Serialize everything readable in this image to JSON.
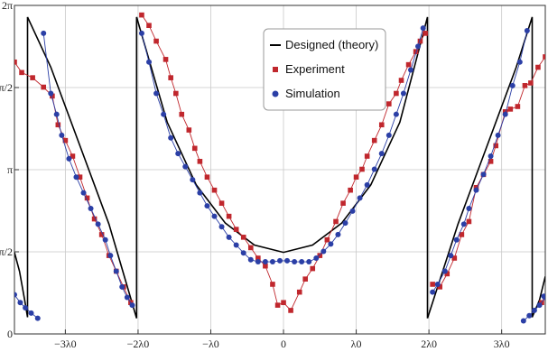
{
  "chart_data": {
    "type": "line",
    "title": "",
    "xlabel": "",
    "ylabel": "",
    "xlim": [
      -3.7,
      3.6
    ],
    "ylim": [
      0,
      6.2832
    ],
    "x_unit": "λ0",
    "y_unit": "rad",
    "grid": true,
    "legend_position": "top-center",
    "x_ticks": [
      {
        "value": -3,
        "label": "−3λ0"
      },
      {
        "value": -2,
        "label": "−2λ0"
      },
      {
        "value": -1,
        "label": "−λ0"
      },
      {
        "value": 0,
        "label": "0"
      },
      {
        "value": 1,
        "label": "λ0"
      },
      {
        "value": 2,
        "label": "2λ0"
      },
      {
        "value": 3,
        "label": "3λ0"
      }
    ],
    "y_ticks": [
      {
        "value": 0,
        "label": "0"
      },
      {
        "value": 1.5708,
        "label": "π/2"
      },
      {
        "value": 3.1416,
        "label": "π"
      },
      {
        "value": 4.7124,
        "label": "3π/2"
      },
      {
        "value": 6.2832,
        "label": "2π"
      }
    ],
    "series": [
      {
        "name": "Designed (theory)",
        "style": "line",
        "color": "#000000",
        "segments": [
          [
            [
              -3.7,
              1.56
            ],
            [
              -3.63,
              1.2
            ],
            [
              -3.56,
              0.65
            ],
            [
              -3.52,
              0.32
            ],
            [
              -3.52,
              6.06
            ]
          ],
          [
            [
              -3.52,
              6.06
            ],
            [
              -3.2,
              5.1
            ],
            [
              -2.8,
              3.6
            ],
            [
              -2.4,
              2.1
            ],
            [
              -2.02,
              0.3
            ],
            [
              -2.02,
              6.06
            ]
          ],
          [
            [
              -2.02,
              6.06
            ],
            [
              -1.6,
              4.05
            ],
            [
              -1.2,
              2.85
            ],
            [
              -0.8,
              2.12
            ],
            [
              -0.4,
              1.7
            ],
            [
              0,
              1.56
            ],
            [
              0.4,
              1.7
            ],
            [
              0.8,
              2.12
            ],
            [
              1.2,
              2.85
            ],
            [
              1.6,
              4.05
            ],
            [
              1.98,
              6.06
            ],
            [
              1.98,
              0.3
            ]
          ],
          [
            [
              1.98,
              0.3
            ],
            [
              2.4,
              2.1
            ],
            [
              2.8,
              3.6
            ],
            [
              3.2,
              5.1
            ],
            [
              3.42,
              6.06
            ],
            [
              3.42,
              0.32
            ],
            [
              3.52,
              0.65
            ],
            [
              3.6,
              1.1
            ]
          ]
        ]
      },
      {
        "name": "Experiment",
        "style": "line+square",
        "color": "#c0272d",
        "points": [
          [
            -3.7,
            5.2
          ],
          [
            -3.6,
            5.0
          ],
          [
            -3.45,
            4.9
          ],
          [
            -3.3,
            4.72
          ],
          [
            -3.18,
            4.55
          ],
          [
            -3.1,
            4.0
          ],
          [
            -3.0,
            3.7
          ],
          [
            -2.9,
            3.4
          ],
          [
            -2.8,
            3.0
          ],
          [
            -2.7,
            2.6
          ],
          [
            -2.6,
            2.2
          ],
          [
            -2.5,
            1.9
          ],
          [
            -2.4,
            1.5
          ],
          [
            -2.3,
            1.2
          ],
          [
            -2.2,
            0.9
          ],
          [
            -2.1,
            0.6
          ],
          [
            -1.95,
            6.1
          ],
          [
            -1.85,
            5.9
          ],
          [
            -1.75,
            5.6
          ],
          [
            -1.62,
            5.25
          ],
          [
            -1.55,
            4.9
          ],
          [
            -1.48,
            4.6
          ],
          [
            -1.4,
            4.2
          ],
          [
            -1.3,
            3.9
          ],
          [
            -1.22,
            3.55
          ],
          [
            -1.15,
            3.3
          ],
          [
            -1.05,
            3.0
          ],
          [
            -0.95,
            2.75
          ],
          [
            -0.85,
            2.5
          ],
          [
            -0.75,
            2.25
          ],
          [
            -0.65,
            2.0
          ],
          [
            -0.55,
            1.85
          ],
          [
            -0.45,
            1.65
          ],
          [
            -0.35,
            1.45
          ],
          [
            -0.25,
            1.3
          ],
          [
            -0.15,
            0.95
          ],
          [
            -0.08,
            0.55
          ],
          [
            0.0,
            0.6
          ],
          [
            0.1,
            0.45
          ],
          [
            0.22,
            0.8
          ],
          [
            0.3,
            1.05
          ],
          [
            0.4,
            1.25
          ],
          [
            0.5,
            1.5
          ],
          [
            0.6,
            1.8
          ],
          [
            0.72,
            2.15
          ],
          [
            0.82,
            2.5
          ],
          [
            0.92,
            2.75
          ],
          [
            1.0,
            3.0
          ],
          [
            1.08,
            3.15
          ],
          [
            1.15,
            3.4
          ],
          [
            1.25,
            3.7
          ],
          [
            1.35,
            4.0
          ],
          [
            1.45,
            4.4
          ],
          [
            1.55,
            4.6
          ],
          [
            1.62,
            4.85
          ],
          [
            1.72,
            5.15
          ],
          [
            1.82,
            5.4
          ],
          [
            1.88,
            5.6
          ],
          [
            1.95,
            5.75
          ],
          [
            2.05,
            0.95
          ],
          [
            2.15,
            0.9
          ],
          [
            2.25,
            1.15
          ],
          [
            2.35,
            1.45
          ],
          [
            2.45,
            1.9
          ],
          [
            2.55,
            2.15
          ],
          [
            2.65,
            2.8
          ],
          [
            2.75,
            3.05
          ],
          [
            2.85,
            3.3
          ],
          [
            2.92,
            3.6
          ],
          [
            3.05,
            4.25
          ],
          [
            3.12,
            4.3
          ],
          [
            3.22,
            4.35
          ],
          [
            3.32,
            4.75
          ],
          [
            3.4,
            4.8
          ],
          [
            3.5,
            5.1
          ],
          [
            3.6,
            5.3
          ],
          [
            3.6,
            0.7
          ],
          [
            3.55,
            0.6
          ]
        ]
      },
      {
        "name": "Simulation",
        "style": "line+circle",
        "color": "#2b3fa6",
        "points": [
          [
            -3.7,
            0.75
          ],
          [
            -3.62,
            0.6
          ],
          [
            -3.55,
            0.5
          ],
          [
            -3.47,
            0.4
          ],
          [
            -3.38,
            0.3
          ],
          [
            -3.3,
            5.75
          ],
          [
            -3.2,
            4.6
          ],
          [
            -3.12,
            4.2
          ],
          [
            -3.05,
            3.8
          ],
          [
            -2.95,
            3.35
          ],
          [
            -2.85,
            3.0
          ],
          [
            -2.75,
            2.7
          ],
          [
            -2.65,
            2.4
          ],
          [
            -2.55,
            2.1
          ],
          [
            -2.45,
            1.8
          ],
          [
            -2.38,
            1.5
          ],
          [
            -2.3,
            1.2
          ],
          [
            -2.22,
            0.9
          ],
          [
            -2.15,
            0.7
          ],
          [
            -2.08,
            0.55
          ],
          [
            -1.95,
            5.75
          ],
          [
            -1.85,
            5.2
          ],
          [
            -1.75,
            4.6
          ],
          [
            -1.65,
            4.2
          ],
          [
            -1.55,
            3.75
          ],
          [
            -1.45,
            3.45
          ],
          [
            -1.35,
            3.2
          ],
          [
            -1.25,
            2.95
          ],
          [
            -1.15,
            2.7
          ],
          [
            -1.05,
            2.45
          ],
          [
            -0.95,
            2.25
          ],
          [
            -0.85,
            2.05
          ],
          [
            -0.75,
            1.85
          ],
          [
            -0.65,
            1.7
          ],
          [
            -0.55,
            1.55
          ],
          [
            -0.45,
            1.42
          ],
          [
            -0.35,
            1.38
          ],
          [
            -0.25,
            1.38
          ],
          [
            -0.15,
            1.38
          ],
          [
            -0.05,
            1.4
          ],
          [
            0.05,
            1.4
          ],
          [
            0.15,
            1.38
          ],
          [
            0.25,
            1.38
          ],
          [
            0.35,
            1.38
          ],
          [
            0.45,
            1.45
          ],
          [
            0.55,
            1.58
          ],
          [
            0.65,
            1.72
          ],
          [
            0.75,
            1.9
          ],
          [
            0.85,
            2.12
          ],
          [
            0.95,
            2.35
          ],
          [
            1.05,
            2.6
          ],
          [
            1.15,
            2.85
          ],
          [
            1.25,
            3.15
          ],
          [
            1.35,
            3.45
          ],
          [
            1.45,
            3.8
          ],
          [
            1.55,
            4.2
          ],
          [
            1.65,
            4.6
          ],
          [
            1.75,
            5.05
          ],
          [
            1.85,
            5.5
          ],
          [
            1.92,
            5.85
          ],
          [
            2.05,
            0.8
          ],
          [
            2.12,
            0.95
          ],
          [
            2.22,
            1.2
          ],
          [
            2.3,
            1.5
          ],
          [
            2.38,
            1.8
          ],
          [
            2.48,
            2.1
          ],
          [
            2.55,
            2.4
          ],
          [
            2.65,
            2.75
          ],
          [
            2.75,
            3.05
          ],
          [
            2.85,
            3.4
          ],
          [
            2.95,
            3.8
          ],
          [
            3.05,
            4.2
          ],
          [
            3.15,
            4.75
          ],
          [
            3.25,
            5.2
          ],
          [
            3.35,
            5.8
          ],
          [
            3.3,
            0.25
          ],
          [
            3.38,
            0.35
          ],
          [
            3.45,
            0.45
          ],
          [
            3.52,
            0.55
          ],
          [
            3.6,
            0.7
          ],
          [
            3.58,
            0.72
          ]
        ]
      }
    ]
  }
}
